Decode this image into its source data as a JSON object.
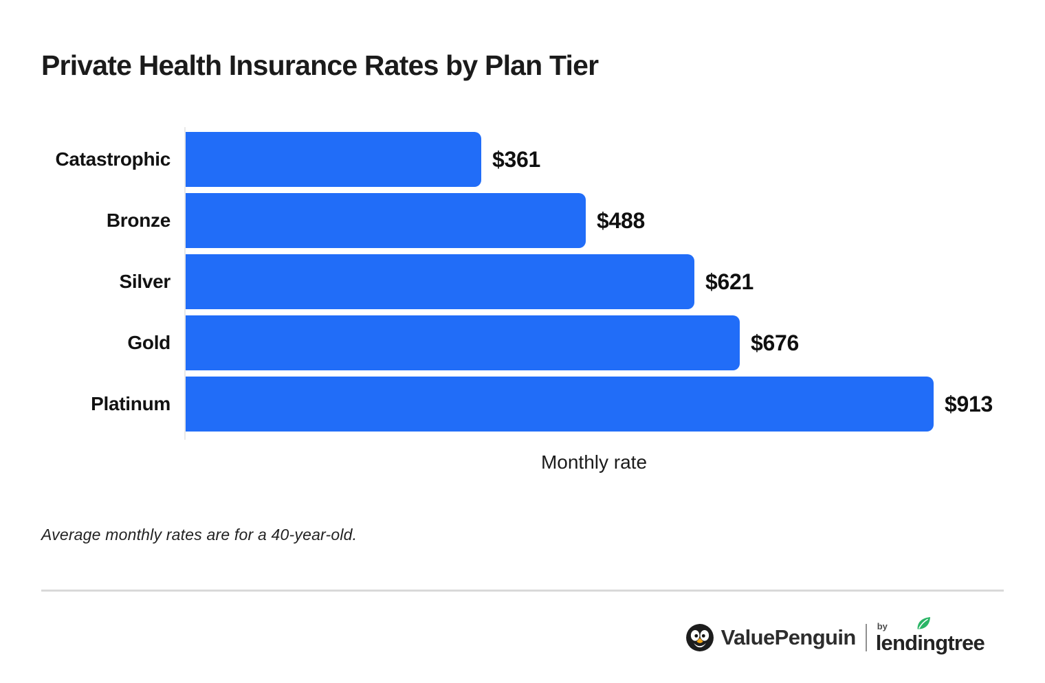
{
  "title": "Private Health Insurance Rates by Plan Tier",
  "chart_data": {
    "type": "bar",
    "orientation": "horizontal",
    "categories": [
      "Catastrophic",
      "Bronze",
      "Silver",
      "Gold",
      "Platinum"
    ],
    "values": [
      361,
      488,
      621,
      676,
      913
    ],
    "value_labels": [
      "$361",
      "$488",
      "$621",
      "$676",
      "$913"
    ],
    "title": "Private Health Insurance Rates by Plan Tier",
    "xlabel": "Monthly rate",
    "ylabel": "",
    "xlim": [
      0,
      913
    ],
    "grid": false,
    "legend": null
  },
  "footnote": "Average monthly rates are for a 40-year-old.",
  "footer": {
    "brand_primary": "ValuePenguin",
    "brand_by": "by",
    "brand_secondary": "lendingtree"
  },
  "colors": {
    "bar": "#216DF8",
    "title_text": "#1b1b1b",
    "axis_line": "#e9e9e9",
    "divider": "#d9d9d9",
    "leaf_green": "#2BB566",
    "beak_orange": "#F5A716",
    "penguin_black": "#1d1d1d"
  }
}
